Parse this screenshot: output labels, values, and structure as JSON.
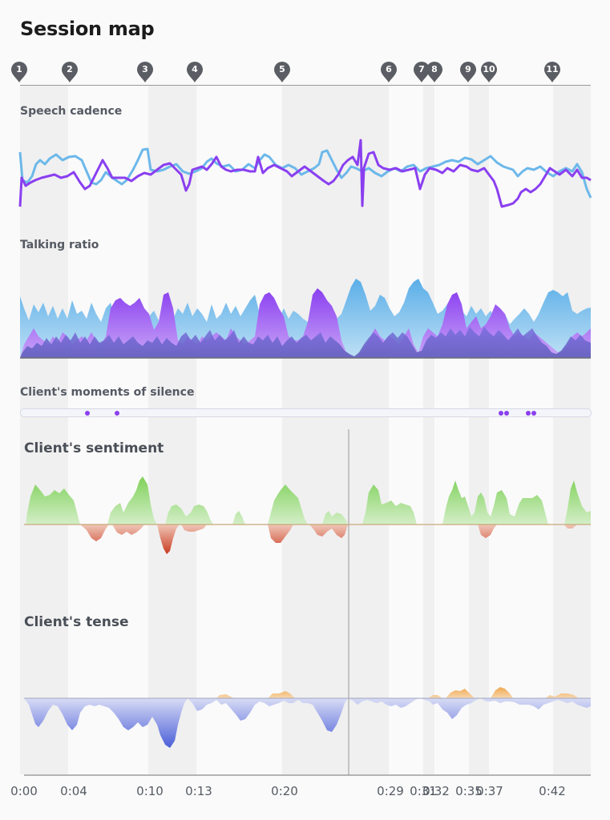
{
  "title": "Session map",
  "markers": [
    "1",
    "2",
    "3",
    "4",
    "5",
    "6",
    "7",
    "8",
    "9",
    "10",
    "11"
  ],
  "sections": {
    "cadence": "Speech cadence",
    "talking": "Talking ratio",
    "silence": "Client's moments of silence",
    "sentiment": "Client's sentiment",
    "tense": "Client's tense"
  },
  "time_labels": [
    "0:00",
    "0:04",
    "0:10",
    "0:13",
    "0:20",
    "0:29",
    "0:31",
    "0:32",
    "0:35",
    "0:37",
    "0:42"
  ],
  "colors": {
    "cadence_client": "#8a3ff0",
    "cadence_therapist": "#6cb8ea",
    "positive": "#86d36a",
    "negative": "#d9553a",
    "tense_low": "#5b6fe0",
    "tense_high": "#f0b060"
  },
  "silence_count": 7
}
